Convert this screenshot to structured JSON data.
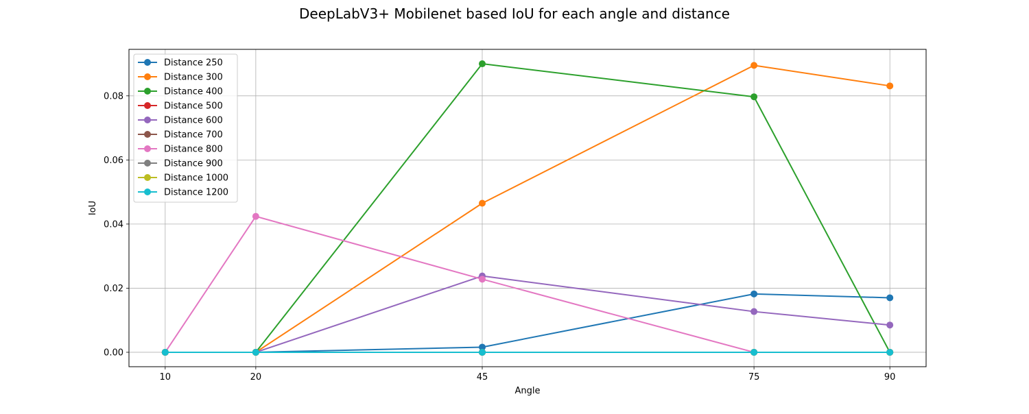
{
  "chart_data": {
    "type": "line",
    "title": "DeepLabV3+ Mobilenet based IoU for each angle and distance",
    "xlabel": "Angle",
    "ylabel": "IoU",
    "x": [
      10,
      20,
      45,
      75,
      90
    ],
    "xticks": [
      "10",
      "20",
      "45",
      "75",
      "90"
    ],
    "xlim": [
      6,
      94
    ],
    "ylim": [
      -0.0045,
      0.0945
    ],
    "yticks": [
      "0.00",
      "0.02",
      "0.04",
      "0.06",
      "0.08"
    ],
    "ytick_values": [
      0.0,
      0.02,
      0.04,
      0.06,
      0.08
    ],
    "grid": true,
    "marker": "circle",
    "legend_position": "top-left",
    "series": [
      {
        "name": "Distance 250",
        "color": "#1f77b4",
        "values": [
          0.0,
          0.0,
          0.0016,
          0.0182,
          0.017
        ]
      },
      {
        "name": "Distance 300",
        "color": "#ff7f0e",
        "values": [
          0.0,
          0.0,
          0.0465,
          0.0895,
          0.0831
        ]
      },
      {
        "name": "Distance 400",
        "color": "#2ca02c",
        "values": [
          0.0,
          0.0,
          0.09,
          0.0797,
          0.0
        ]
      },
      {
        "name": "Distance 500",
        "color": "#d62728",
        "values": [
          0.0,
          0.0,
          0.0,
          0.0,
          0.0
        ]
      },
      {
        "name": "Distance 600",
        "color": "#9467bd",
        "values": [
          0.0,
          0.0,
          0.0238,
          0.0127,
          0.0085
        ]
      },
      {
        "name": "Distance 700",
        "color": "#8c564b",
        "values": [
          0.0,
          0.0,
          0.0,
          0.0,
          0.0
        ]
      },
      {
        "name": "Distance 800",
        "color": "#e377c2",
        "values": [
          0.0,
          0.0424,
          0.0228,
          0.0,
          0.0
        ]
      },
      {
        "name": "Distance 900",
        "color": "#7f7f7f",
        "values": [
          0.0,
          0.0,
          0.0,
          0.0,
          0.0
        ]
      },
      {
        "name": "Distance 1000",
        "color": "#bcbd22",
        "values": [
          0.0,
          0.0,
          0.0,
          0.0,
          0.0
        ]
      },
      {
        "name": "Distance 1200",
        "color": "#17becf",
        "values": [
          0.0,
          0.0,
          0.0,
          0.0,
          0.0
        ]
      }
    ]
  }
}
